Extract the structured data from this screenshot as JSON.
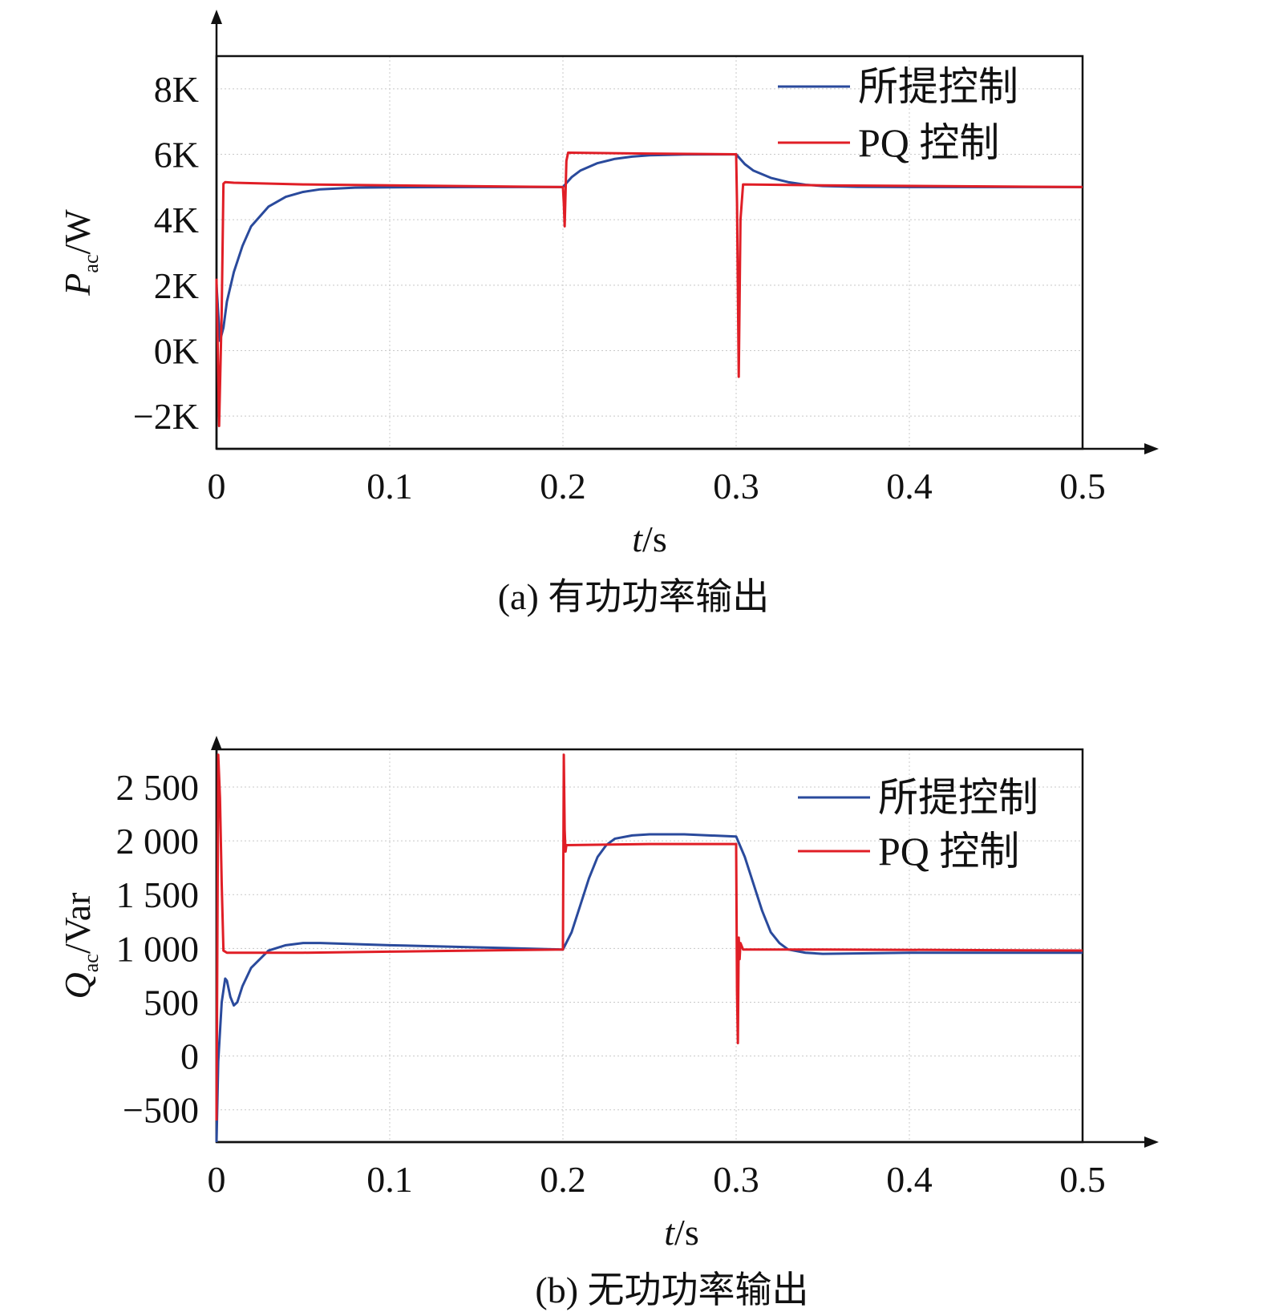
{
  "colors": {
    "proposed": "#2a4a9c",
    "pq": "#e01e26",
    "axis": "#111111",
    "grid": "#c8c8c8"
  },
  "chart_data": [
    {
      "type": "line",
      "caption": "(a) 有功功率输出",
      "xlabel_var": "t",
      "xlabel_unit": "/s",
      "ylabel_var": "P",
      "ylabel_sub": "ac",
      "ylabel_unit": "/W",
      "xlim": [
        0,
        0.5
      ],
      "ylim": [
        -3000,
        9000
      ],
      "x_ticks": [
        0,
        0.1,
        0.2,
        0.3,
        0.4,
        0.5
      ],
      "x_tick_labels": [
        "0",
        "0.1",
        "0.2",
        "0.3",
        "0.4",
        "0.5"
      ],
      "y_ticks": [
        -2000,
        0,
        2000,
        4000,
        6000,
        8000
      ],
      "y_tick_labels": [
        "−2K",
        "0K",
        "2K",
        "4K",
        "6K",
        "8K"
      ],
      "grid": true,
      "legend_position": "top-right",
      "series": [
        {
          "name": "所提控制",
          "color": "#2a4a9c",
          "points": [
            [
              0,
              2000
            ],
            [
              0.002,
              300
            ],
            [
              0.004,
              700
            ],
            [
              0.006,
              1500
            ],
            [
              0.01,
              2400
            ],
            [
              0.015,
              3200
            ],
            [
              0.02,
              3800
            ],
            [
              0.03,
              4400
            ],
            [
              0.04,
              4700
            ],
            [
              0.05,
              4850
            ],
            [
              0.06,
              4930
            ],
            [
              0.08,
              4980
            ],
            [
              0.1,
              4990
            ],
            [
              0.15,
              5000
            ],
            [
              0.2,
              5000
            ],
            [
              0.205,
              5300
            ],
            [
              0.21,
              5500
            ],
            [
              0.22,
              5730
            ],
            [
              0.23,
              5860
            ],
            [
              0.24,
              5930
            ],
            [
              0.25,
              5970
            ],
            [
              0.27,
              5995
            ],
            [
              0.3,
              6000
            ],
            [
              0.305,
              5700
            ],
            [
              0.31,
              5500
            ],
            [
              0.32,
              5280
            ],
            [
              0.33,
              5150
            ],
            [
              0.34,
              5070
            ],
            [
              0.35,
              5030
            ],
            [
              0.37,
              5005
            ],
            [
              0.4,
              5000
            ],
            [
              0.5,
              5000
            ]
          ]
        },
        {
          "name": "PQ 控制",
          "color": "#e01e26",
          "points": [
            [
              0,
              2200
            ],
            [
              0.0015,
              -2300
            ],
            [
              0.003,
              1200
            ],
            [
              0.004,
              5100
            ],
            [
              0.005,
              5150
            ],
            [
              0.01,
              5130
            ],
            [
              0.05,
              5080
            ],
            [
              0.1,
              5050
            ],
            [
              0.2,
              5000
            ],
            [
              0.2005,
              4500
            ],
            [
              0.201,
              3800
            ],
            [
              0.202,
              5800
            ],
            [
              0.203,
              6050
            ],
            [
              0.25,
              6020
            ],
            [
              0.3,
              6000
            ],
            [
              0.3005,
              4500
            ],
            [
              0.3015,
              -800
            ],
            [
              0.3025,
              4000
            ],
            [
              0.304,
              5080
            ],
            [
              0.35,
              5050
            ],
            [
              0.5,
              5000
            ]
          ]
        }
      ]
    },
    {
      "type": "line",
      "caption": "(b) 无功功率输出",
      "xlabel_var": "t",
      "xlabel_unit": "/s",
      "ylabel_var": "Q",
      "ylabel_sub": "ac",
      "ylabel_unit": "/Var",
      "xlim": [
        0,
        0.5
      ],
      "ylim": [
        -800,
        2850
      ],
      "x_ticks": [
        0,
        0.1,
        0.2,
        0.3,
        0.4,
        0.5
      ],
      "x_tick_labels": [
        "0",
        "0.1",
        "0.2",
        "0.3",
        "0.4",
        "0.5"
      ],
      "y_ticks": [
        -500,
        0,
        500,
        1000,
        1500,
        2000,
        2500
      ],
      "y_tick_labels": [
        "−500",
        "0",
        "500",
        "1 000",
        "1 500",
        "2 000",
        "2 500"
      ],
      "grid": true,
      "legend_position": "top-right",
      "series": [
        {
          "name": "所提控制",
          "color": "#2a4a9c",
          "points": [
            [
              0,
              -800
            ],
            [
              0.001,
              -50
            ],
            [
              0.003,
              500
            ],
            [
              0.005,
              720
            ],
            [
              0.006,
              700
            ],
            [
              0.008,
              550
            ],
            [
              0.01,
              470
            ],
            [
              0.012,
              500
            ],
            [
              0.015,
              650
            ],
            [
              0.02,
              820
            ],
            [
              0.03,
              980
            ],
            [
              0.04,
              1030
            ],
            [
              0.05,
              1050
            ],
            [
              0.06,
              1050
            ],
            [
              0.08,
              1040
            ],
            [
              0.1,
              1030
            ],
            [
              0.15,
              1010
            ],
            [
              0.2,
              990
            ],
            [
              0.205,
              1150
            ],
            [
              0.21,
              1400
            ],
            [
              0.215,
              1650
            ],
            [
              0.22,
              1850
            ],
            [
              0.225,
              1960
            ],
            [
              0.23,
              2020
            ],
            [
              0.24,
              2050
            ],
            [
              0.25,
              2060
            ],
            [
              0.27,
              2060
            ],
            [
              0.3,
              2040
            ],
            [
              0.305,
              1850
            ],
            [
              0.31,
              1600
            ],
            [
              0.315,
              1350
            ],
            [
              0.32,
              1150
            ],
            [
              0.325,
              1050
            ],
            [
              0.33,
              990
            ],
            [
              0.34,
              960
            ],
            [
              0.35,
              950
            ],
            [
              0.4,
              960
            ],
            [
              0.45,
              960
            ],
            [
              0.5,
              960
            ]
          ]
        },
        {
          "name": "PQ 控制",
          "color": "#e01e26",
          "points": [
            [
              0,
              -600
            ],
            [
              0.001,
              2800
            ],
            [
              0.002,
              2400
            ],
            [
              0.003,
              1600
            ],
            [
              0.004,
              980
            ],
            [
              0.006,
              960
            ],
            [
              0.05,
              960
            ],
            [
              0.1,
              970
            ],
            [
              0.2,
              990
            ],
            [
              0.2005,
              2800
            ],
            [
              0.201,
              2100
            ],
            [
              0.2015,
              1900
            ],
            [
              0.202,
              1960
            ],
            [
              0.25,
              1970
            ],
            [
              0.3,
              1970
            ],
            [
              0.3005,
              600
            ],
            [
              0.301,
              120
            ],
            [
              0.3015,
              1100
            ],
            [
              0.302,
              900
            ],
            [
              0.3025,
              1050
            ],
            [
              0.304,
              990
            ],
            [
              0.35,
              990
            ],
            [
              0.5,
              980
            ]
          ]
        }
      ]
    }
  ]
}
